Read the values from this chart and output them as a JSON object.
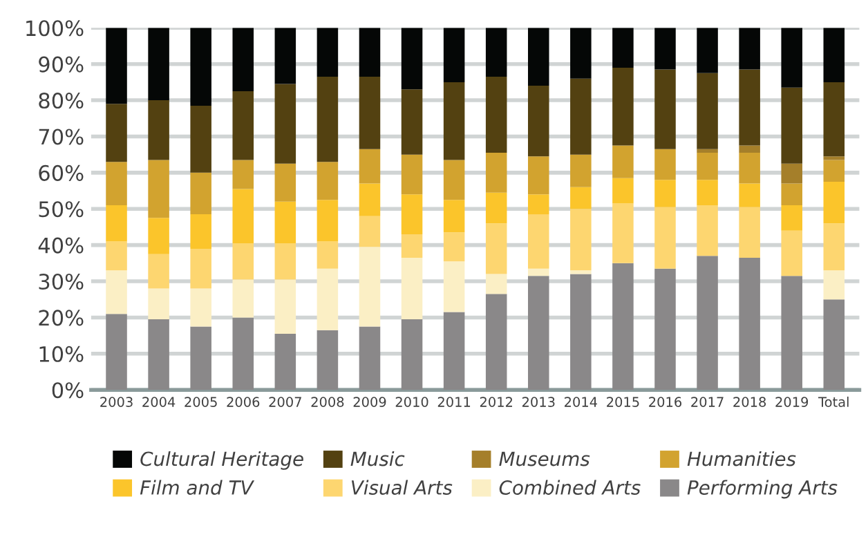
{
  "chart_data": {
    "type": "bar",
    "stacked": true,
    "categories": [
      "2003",
      "2004",
      "2005",
      "2006",
      "2007",
      "2008",
      "2009",
      "2010",
      "2011",
      "2012",
      "2013",
      "2014",
      "2015",
      "2016",
      "2017",
      "2018",
      "2019",
      "Total"
    ],
    "series": [
      {
        "name": "Performing Arts",
        "color": "#8a8889",
        "values": [
          21,
          19.5,
          17.5,
          20,
          15.5,
          16.5,
          17.5,
          19.5,
          21.5,
          26.5,
          31.5,
          32,
          35,
          33.5,
          37,
          36.5,
          31.5,
          25
        ]
      },
      {
        "name": "Combined Arts",
        "color": "#fbefc5",
        "values": [
          12,
          8.5,
          10.5,
          10.5,
          15,
          17,
          22,
          17,
          14,
          5.5,
          2,
          1,
          0,
          0,
          0,
          0,
          0,
          8
        ]
      },
      {
        "name": "Visual Arts",
        "color": "#fdd670",
        "values": [
          8,
          9.5,
          11,
          10,
          10,
          7.5,
          8.5,
          6.5,
          8,
          14,
          15,
          17,
          16.5,
          17,
          14,
          14,
          12.5,
          13
        ]
      },
      {
        "name": "Film and TV",
        "color": "#fbc52b",
        "values": [
          10,
          10,
          9.5,
          15,
          11.5,
          11.5,
          9,
          11,
          9,
          8.5,
          5.5,
          6,
          7,
          7.5,
          7,
          6.5,
          7,
          11.5
        ]
      },
      {
        "name": "Humanities",
        "color": "#d2a32f",
        "values": [
          12,
          16,
          11.5,
          8,
          10.5,
          10.5,
          9.5,
          11,
          11,
          11,
          10.5,
          9,
          9,
          8.5,
          7.5,
          8.5,
          6,
          6
        ]
      },
      {
        "name": "Museums",
        "color": "#a57f2a",
        "values": [
          0,
          0,
          0,
          0,
          0,
          0,
          0,
          0,
          0,
          0,
          0,
          0,
          0,
          0,
          1,
          2,
          5.5,
          1
        ]
      },
      {
        "name": "Music",
        "color": "#534111",
        "values": [
          16,
          16.5,
          18.5,
          19,
          22,
          23.5,
          20,
          18,
          21.5,
          21,
          19.5,
          21,
          21.5,
          22,
          21,
          21,
          21,
          20.5
        ]
      },
      {
        "name": "Cultural Heritage",
        "color": "#050706",
        "values": [
          21,
          20,
          21.5,
          17.5,
          15.5,
          13.5,
          13.5,
          17,
          15,
          13.5,
          16,
          14,
          11,
          11.5,
          12.5,
          11.5,
          16.5,
          15
        ]
      }
    ],
    "ylim": [
      0,
      100
    ],
    "yticks": [
      {
        "value": 0,
        "label": "0%"
      },
      {
        "value": 10,
        "label": "10%"
      },
      {
        "value": 20,
        "label": "20%"
      },
      {
        "value": 30,
        "label": "30%"
      },
      {
        "value": 40,
        "label": "40%"
      },
      {
        "value": 50,
        "label": "50%"
      },
      {
        "value": 60,
        "label": "60%"
      },
      {
        "value": 70,
        "label": "70%"
      },
      {
        "value": 80,
        "label": "80%"
      },
      {
        "value": 90,
        "label": "90%"
      },
      {
        "value": 100,
        "label": "100%"
      }
    ],
    "grid": "y",
    "legend": "bottom"
  }
}
